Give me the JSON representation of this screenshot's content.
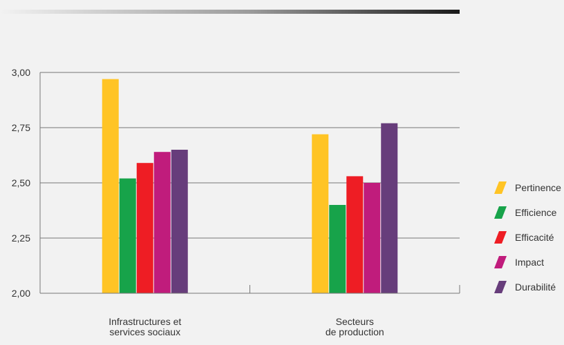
{
  "chart_data": {
    "type": "bar",
    "categories": [
      [
        "Infrastructures et",
        "services sociaux"
      ],
      [
        "Secteurs",
        "de production"
      ]
    ],
    "series": [
      {
        "name": "Pertinence",
        "color": "#ffc425",
        "values": [
          2.97,
          2.72
        ]
      },
      {
        "name": "Efficience",
        "color": "#17a34a",
        "values": [
          2.52,
          2.4
        ]
      },
      {
        "name": "Efficacité",
        "color": "#ee1d24",
        "values": [
          2.59,
          2.53
        ]
      },
      {
        "name": "Impact",
        "color": "#c01c7c",
        "values": [
          2.64,
          2.5
        ]
      },
      {
        "name": "Durabilité",
        "color": "#673d7b",
        "values": [
          2.65,
          2.77
        ]
      }
    ],
    "ylim": [
      2.0,
      3.0
    ],
    "yticks": [
      "2,00",
      "2,25",
      "2,50",
      "2,75",
      "3,00"
    ],
    "ytick_values": [
      2.0,
      2.25,
      2.5,
      2.75,
      3.0
    ],
    "grid": true,
    "legend": "right"
  }
}
